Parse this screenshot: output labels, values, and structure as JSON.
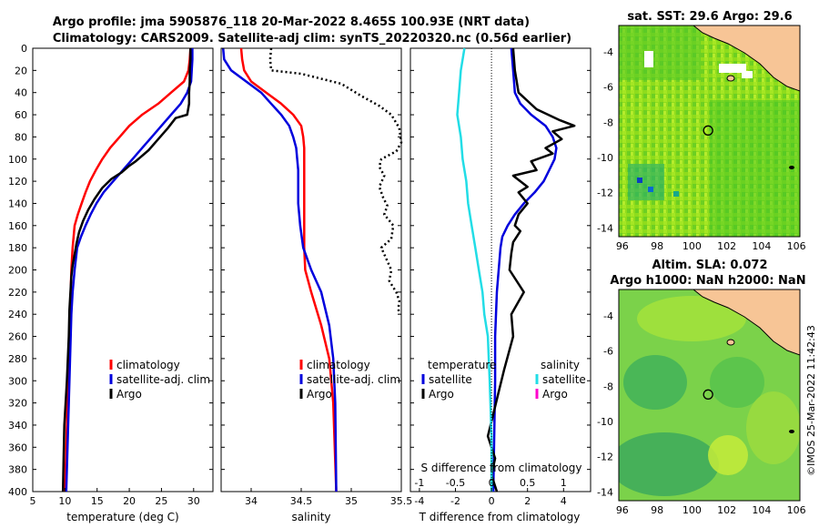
{
  "chart_data": [
    {
      "type": "line",
      "panel": "temperature",
      "title_line1": "Argo profile: jma 5905876_118 20-Mar-2022 8.465S 100.93E (NRT data)",
      "title_line2": "Climatology: CARS2009. Satellite-adj clim: synTS_20220320.nc (0.56d earlier)",
      "xlabel": "temperature (deg C)",
      "xlim": [
        5,
        33
      ],
      "ylim": [
        0,
        400
      ],
      "xticks": [
        "5",
        "10",
        "15",
        "20",
        "25",
        "30"
      ],
      "yticks": [
        "0",
        "20",
        "40",
        "60",
        "80",
        "100",
        "120",
        "140",
        "160",
        "180",
        "200",
        "220",
        "240",
        "260",
        "280",
        "300",
        "320",
        "340",
        "360",
        "380",
        "400"
      ],
      "legend": [
        "climatology",
        "satellite-adj. clim",
        "Argo"
      ],
      "series": [
        {
          "name": "climatology",
          "color": "#ff0000",
          "style": "solid",
          "x": [
            29.5,
            29.4,
            29.2,
            28.5,
            26.5,
            24.5,
            22,
            20,
            18.5,
            17,
            15.8,
            14.8,
            13.9,
            13.2,
            12.6,
            12,
            11.5,
            11.2,
            11,
            10.9,
            10.8,
            10.7,
            10.6,
            10.5,
            10.4,
            10.2,
            10
          ],
          "y": [
            0,
            10,
            20,
            30,
            40,
            50,
            60,
            70,
            80,
            90,
            100,
            110,
            120,
            130,
            140,
            150,
            160,
            180,
            200,
            220,
            240,
            260,
            280,
            300,
            320,
            360,
            400
          ]
        },
        {
          "name": "satellite-adj. clim",
          "color": "#0000dd",
          "style": "solid",
          "x": [
            29.8,
            29.8,
            29.7,
            29.6,
            29,
            28,
            26.5,
            25,
            23.5,
            22,
            20.5,
            19,
            17.5,
            16,
            14.9,
            14,
            13.2,
            12.5,
            11.9,
            11.5,
            11.2,
            11,
            10.9,
            10.8,
            10.7,
            10.6,
            10.4,
            10.2
          ],
          "y": [
            0,
            10,
            20,
            30,
            40,
            50,
            60,
            70,
            80,
            90,
            100,
            110,
            120,
            130,
            140,
            150,
            160,
            170,
            180,
            200,
            220,
            240,
            260,
            280,
            300,
            320,
            360,
            400
          ]
        },
        {
          "name": "Argo",
          "color": "#000000",
          "style": "solid",
          "x": [
            29.5,
            29.5,
            29.4,
            29.4,
            29.3,
            29.3,
            29,
            27.2,
            26,
            24.5,
            23,
            21.8,
            21,
            20,
            18.8,
            17.2,
            15.8,
            14.6,
            13.6,
            12.8,
            12.2,
            11.8,
            11.5,
            11.2,
            11,
            10.9,
            10.8,
            10.7,
            10.6,
            10.3,
            10.1,
            9.9,
            9.8,
            9.7
          ],
          "y": [
            0,
            10,
            20,
            30,
            40,
            50,
            60,
            63,
            72,
            82,
            92,
            98,
            102,
            106,
            112,
            118,
            126,
            136,
            146,
            156,
            166,
            176,
            186,
            196,
            206,
            216,
            226,
            236,
            260,
            300,
            320,
            340,
            370,
            400
          ]
        }
      ]
    },
    {
      "type": "line",
      "panel": "salinity",
      "xlabel": "salinity",
      "xlim": [
        33.7,
        35.5
      ],
      "ylim": [
        0,
        400
      ],
      "xticks": [
        "34",
        "34.5",
        "35",
        "35.5"
      ],
      "legend": [
        "climatology",
        "satellite-adj. clim",
        "Argo"
      ],
      "series": [
        {
          "name": "climatology",
          "color": "#ff0000",
          "style": "solid",
          "x": [
            33.9,
            33.91,
            33.93,
            34.0,
            34.15,
            34.3,
            34.42,
            34.5,
            34.52,
            34.53,
            34.53,
            34.53,
            34.53,
            34.53,
            34.54,
            34.6,
            34.7,
            34.78,
            34.82,
            34.85
          ],
          "y": [
            0,
            10,
            20,
            30,
            40,
            50,
            60,
            70,
            80,
            90,
            100,
            120,
            150,
            180,
            200,
            220,
            250,
            280,
            320,
            400
          ]
        },
        {
          "name": "satellite-adj. clim",
          "color": "#0000dd",
          "style": "solid",
          "x": [
            33.72,
            33.73,
            33.8,
            33.95,
            34.1,
            34.2,
            34.3,
            34.38,
            34.42,
            34.45,
            34.46,
            34.47,
            34.47,
            34.47,
            34.49,
            34.52,
            34.6,
            34.7,
            34.78,
            34.82,
            34.84,
            34.85
          ],
          "y": [
            0,
            10,
            20,
            30,
            40,
            50,
            60,
            70,
            80,
            90,
            100,
            110,
            120,
            140,
            160,
            180,
            200,
            220,
            250,
            280,
            320,
            400
          ]
        },
        {
          "name": "Argo",
          "color": "#000000",
          "style": "dotted",
          "x": [
            34.2,
            34.19,
            34.2,
            34.5,
            34.9,
            35.1,
            35.28,
            35.4,
            35.48,
            35.5,
            35.45,
            35.3,
            35.28,
            35.33,
            35.28,
            35.32,
            35.36,
            35.33,
            35.42,
            35.4,
            35.3,
            35.35,
            35.4,
            35.38,
            35.45,
            35.48,
            35.47,
            35.48
          ],
          "y": [
            0,
            10,
            20,
            23,
            32,
            43,
            52,
            60,
            72,
            85,
            93,
            100,
            107,
            115,
            125,
            135,
            142,
            150,
            160,
            172,
            180,
            190,
            200,
            210,
            220,
            228,
            235,
            240
          ]
        }
      ]
    },
    {
      "type": "line",
      "panel": "difference",
      "xlabel": "T difference from climatology",
      "xlabel_top": "S difference from climatology",
      "xlim": [
        -4.5,
        5.5
      ],
      "ylim": [
        0,
        400
      ],
      "xticks": [
        "-4",
        "-2",
        "0",
        "2",
        "4"
      ],
      "xticks_top": [
        "-1",
        "-0.5",
        "0",
        "0.5",
        "1"
      ],
      "legend_temperature_heading": "temperature",
      "legend_temperature": [
        "satellite",
        "Argo"
      ],
      "legend_salinity_heading": "salinity",
      "legend_salinity": [
        "satellite",
        "Argo"
      ],
      "series": [
        {
          "name": "temperature satellite",
          "color": "#0000dd",
          "style": "solid",
          "x": [
            1.1,
            1.2,
            1.3,
            1.6,
            2.2,
            3.0,
            3.4,
            3.6,
            3.5,
            3.2,
            2.9,
            2.4,
            1.8,
            1.3,
            0.9,
            0.6,
            0.5,
            0.4,
            0.3,
            0.2,
            0.2,
            0.15,
            0.1
          ],
          "y": [
            0,
            20,
            40,
            50,
            60,
            70,
            80,
            90,
            100,
            110,
            120,
            130,
            140,
            150,
            160,
            170,
            180,
            200,
            220,
            260,
            300,
            350,
            400
          ]
        },
        {
          "name": "temperature Argo",
          "color": "#000000",
          "style": "solid",
          "x": [
            1.2,
            1.3,
            1.5,
            2.5,
            3.8,
            4.6,
            3.4,
            3.9,
            3.0,
            3.4,
            2.2,
            2.5,
            1.2,
            2.0,
            1.5,
            2.0,
            1.5,
            1.3,
            1.6,
            1.2,
            1.1,
            1.0,
            1.8,
            1.1,
            1.2,
            0.7,
            0.4,
            0.1,
            -0.2,
            0.2,
            0.0,
            0.3
          ],
          "y": [
            0,
            20,
            40,
            55,
            65,
            70,
            75,
            82,
            90,
            95,
            102,
            110,
            115,
            125,
            130,
            140,
            150,
            160,
            165,
            175,
            185,
            200,
            220,
            240,
            260,
            290,
            310,
            330,
            350,
            370,
            385,
            400
          ]
        },
        {
          "name": "salinity satellite",
          "color": "#22dde6",
          "style": "solid",
          "x": [
            -1.5,
            -1.7,
            -1.8,
            -1.9,
            -1.7,
            -1.6,
            -1.4,
            -1.3,
            -1.1,
            -0.9,
            -0.7,
            -0.5,
            -0.4,
            -0.2,
            -0.1,
            0.0,
            0.0
          ],
          "y": [
            0,
            20,
            40,
            60,
            80,
            100,
            120,
            140,
            160,
            180,
            200,
            220,
            240,
            260,
            300,
            350,
            400
          ]
        },
        {
          "name": "salinity Argo",
          "color": "#ff00cc",
          "style": "solid",
          "x": [],
          "y": []
        }
      ]
    },
    {
      "type": "heatmap",
      "panel": "satellite SST map",
      "title": "sat. SST: 29.6 Argo: 29.6",
      "xlim": [
        95.8,
        106.2
      ],
      "ylim": [
        -14.5,
        -2.5
      ],
      "xticks": [
        "96",
        "98",
        "100",
        "102",
        "104",
        "106"
      ],
      "yticks": [
        "-4",
        "-6",
        "-8",
        "-10",
        "-12",
        "-14"
      ],
      "argo_position": [
        100.93,
        -8.465
      ]
    },
    {
      "type": "heatmap",
      "panel": "altimetry SLA map",
      "title_line1": "Altim. SLA: 0.072",
      "title_line2": "Argo h1000: NaN h2000: NaN",
      "xlim": [
        95.8,
        106.2
      ],
      "ylim": [
        -14.5,
        -2.5
      ],
      "xticks": [
        "96",
        "98",
        "100",
        "102",
        "104",
        "106"
      ],
      "yticks": [
        "-4",
        "-6",
        "-8",
        "-10",
        "-12",
        "-14"
      ],
      "argo_position": [
        100.93,
        -8.465
      ],
      "side_label": "©IMOS 25-Mar-2022 11:42:43"
    }
  ]
}
